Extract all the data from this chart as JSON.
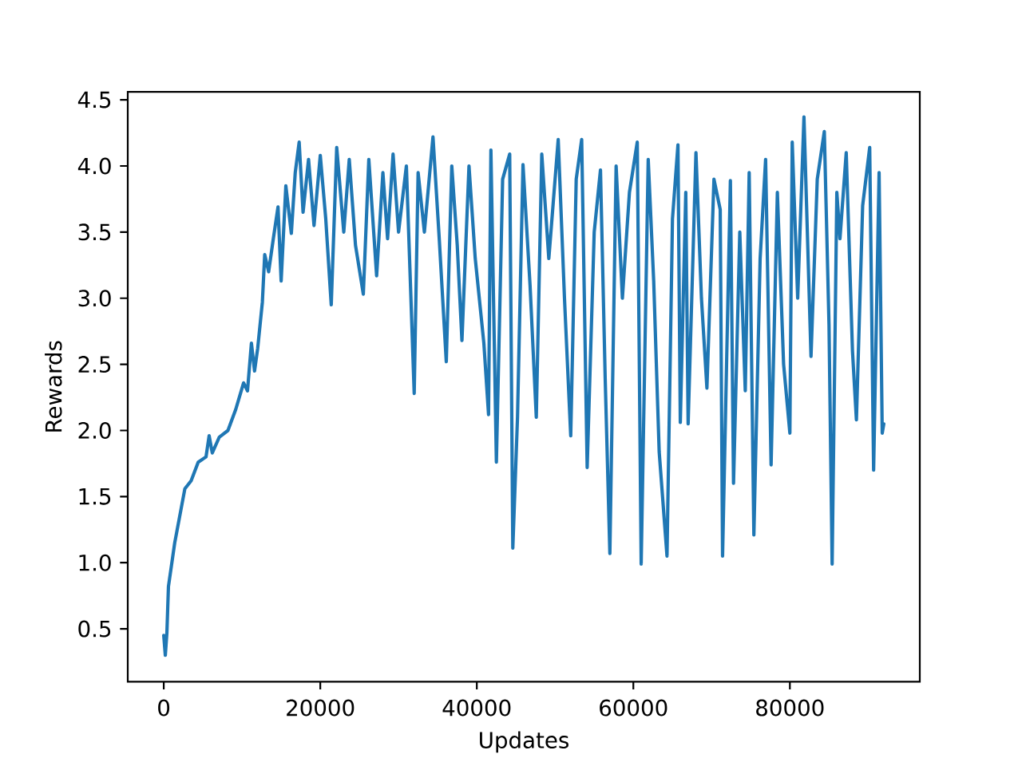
{
  "chart_data": {
    "type": "line",
    "xlabel": "Updates",
    "ylabel": "Rewards",
    "x": [
      0,
      200,
      400,
      600,
      1400,
      2700,
      3500,
      4400,
      5400,
      5800,
      6200,
      7100,
      8200,
      9200,
      10200,
      10700,
      11200,
      11600,
      12000,
      12600,
      12900,
      13400,
      14000,
      14600,
      15000,
      15600,
      16300,
      16800,
      17300,
      17800,
      18500,
      19200,
      20000,
      20700,
      21400,
      22100,
      23000,
      23700,
      24500,
      25500,
      26200,
      27200,
      28000,
      28600,
      29300,
      30000,
      31000,
      32000,
      32500,
      33300,
      34400,
      35200,
      36100,
      36800,
      37500,
      38100,
      39000,
      39800,
      40900,
      41500,
      41800,
      42500,
      43300,
      44200,
      44600,
      45200,
      45900,
      46800,
      47600,
      48300,
      49200,
      50400,
      51200,
      52000,
      52700,
      53400,
      54100,
      55000,
      55800,
      56400,
      57000,
      57800,
      58600,
      59500,
      60500,
      61000,
      61900,
      62600,
      63300,
      64300,
      65000,
      65700,
      66000,
      66700,
      67000,
      68000,
      68700,
      69400,
      70300,
      71100,
      71400,
      72400,
      72800,
      73600,
      74300,
      74800,
      75400,
      76200,
      76900,
      77600,
      78400,
      79200,
      80000,
      80300,
      81000,
      81800,
      82700,
      83500,
      84400,
      85000,
      85400,
      86000,
      86400,
      87200,
      88000,
      88500,
      89300,
      90200,
      90700,
      91400,
      91800,
      92000
    ],
    "series": [
      {
        "color": "#1f77b4",
        "values": [
          0.45,
          0.3,
          0.47,
          0.82,
          1.15,
          1.56,
          1.62,
          1.76,
          1.8,
          1.96,
          1.83,
          1.95,
          2.0,
          2.16,
          2.36,
          2.3,
          2.66,
          2.45,
          2.62,
          2.97,
          3.33,
          3.2,
          3.45,
          3.69,
          3.13,
          3.85,
          3.49,
          3.95,
          4.18,
          3.65,
          4.05,
          3.55,
          4.08,
          3.6,
          2.95,
          4.14,
          3.5,
          4.05,
          3.4,
          3.03,
          4.05,
          3.17,
          3.95,
          3.45,
          4.09,
          3.5,
          4.0,
          2.28,
          3.95,
          3.5,
          4.22,
          3.45,
          2.52,
          4.0,
          3.4,
          2.68,
          4.0,
          3.3,
          2.66,
          2.12,
          4.12,
          1.76,
          3.9,
          4.09,
          1.11,
          2.1,
          4.01,
          3.1,
          2.1,
          4.09,
          3.3,
          4.2,
          3.0,
          1.96,
          3.9,
          4.2,
          1.72,
          3.5,
          3.97,
          2.4,
          1.07,
          4.0,
          3.0,
          3.8,
          4.18,
          0.99,
          4.05,
          3.13,
          1.84,
          1.05,
          3.6,
          4.16,
          2.06,
          3.8,
          2.05,
          4.1,
          3.0,
          2.32,
          3.9,
          3.67,
          1.05,
          3.89,
          1.6,
          3.5,
          2.3,
          3.95,
          1.21,
          3.3,
          4.05,
          1.74,
          3.8,
          2.5,
          1.98,
          4.18,
          3.0,
          4.37,
          2.56,
          3.9,
          4.26,
          2.8,
          0.99,
          3.8,
          3.45,
          4.1,
          2.6,
          2.08,
          3.7,
          4.14,
          1.7,
          3.95,
          1.98,
          2.05
        ]
      }
    ],
    "xlim": [
      -4600,
      96600
    ],
    "ylim": [
      0.1,
      4.56
    ],
    "xticks": [
      0,
      20000,
      40000,
      60000,
      80000
    ],
    "yticks": [
      0.5,
      {
        "value": 1,
        "label": "1.0"
      },
      1.5,
      {
        "value": 2,
        "label": "2.0"
      },
      2.5,
      {
        "value": 3,
        "label": "3.0"
      },
      3.5,
      {
        "value": 4,
        "label": "4.0"
      },
      4.5
    ]
  }
}
